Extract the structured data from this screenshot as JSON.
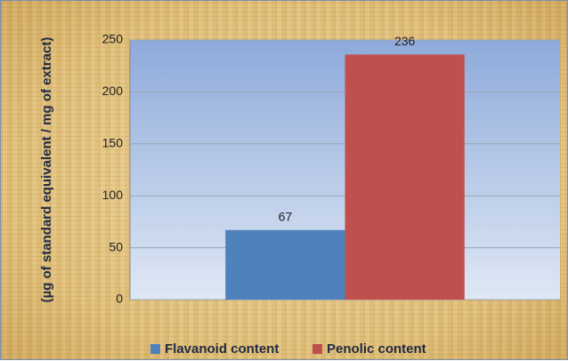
{
  "chart_data": {
    "type": "bar",
    "ylabel": "(µg of standard equivalent / mg of extract)",
    "categories": [
      null
    ],
    "series": [
      {
        "name": "Flavanoid content",
        "color": "#4f81bd",
        "values": [
          67
        ]
      },
      {
        "name": "Penolic content",
        "color": "#c0504d",
        "values": [
          236
        ]
      }
    ],
    "ylim": [
      0,
      250
    ],
    "yticks": [
      0,
      50,
      100,
      150,
      200,
      250
    ],
    "grid": true,
    "legend": "bottom"
  }
}
